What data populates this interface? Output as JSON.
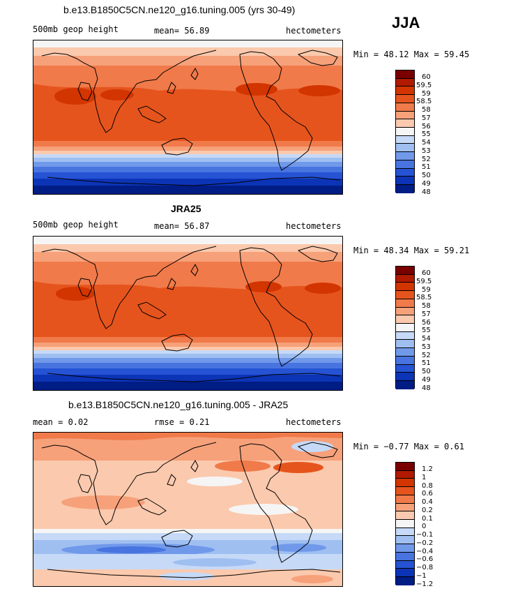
{
  "season": "JJA",
  "panels": [
    {
      "title": "b.e13.B1850C5CN.ne120_g16.tuning.005 (yrs 30-49)",
      "left": "500mb geop height",
      "middle": "mean=  56.89",
      "right": "hectometers",
      "minmax": "Min =  48.12 Max =  59.45",
      "levels": [
        "60",
        "59.5",
        "59",
        "58.5",
        "58",
        "57",
        "56",
        "55",
        "54",
        "53",
        "52",
        "51",
        "50",
        "49",
        "48"
      ]
    },
    {
      "title": "JRA25",
      "left": "500mb geop height",
      "middle": "mean=  56.87",
      "right": "hectometers",
      "minmax": "Min =  48.34 Max =  59.21",
      "levels": [
        "60",
        "59.5",
        "59",
        "58.5",
        "58",
        "57",
        "56",
        "55",
        "54",
        "53",
        "52",
        "51",
        "50",
        "49",
        "48"
      ]
    },
    {
      "title": "b.e13.B1850C5CN.ne120_g16.tuning.005 - JRA25",
      "left": "mean =    0.02",
      "middle": "rmse =    0.21",
      "right": "hectometers",
      "minmax": "Min =  −0.77 Max =    0.61",
      "levels": [
        "1.2",
        "1",
        "0.8",
        "0.6",
        "0.4",
        "0.2",
        "0.1",
        "0",
        "−0.1",
        "−0.2",
        "−0.4",
        "−0.6",
        "−0.8",
        "−1",
        "−1.2"
      ]
    }
  ],
  "colors": {
    "scale": [
      "#7a0000",
      "#b01a00",
      "#d23500",
      "#e6541d",
      "#f07a4a",
      "#f6a17a",
      "#fbc9ad",
      "#f5f5f5",
      "#c6d9f7",
      "#9fbff1",
      "#7199ea",
      "#4874e0",
      "#2553d4",
      "#0c34b6",
      "#001c85"
    ]
  }
}
